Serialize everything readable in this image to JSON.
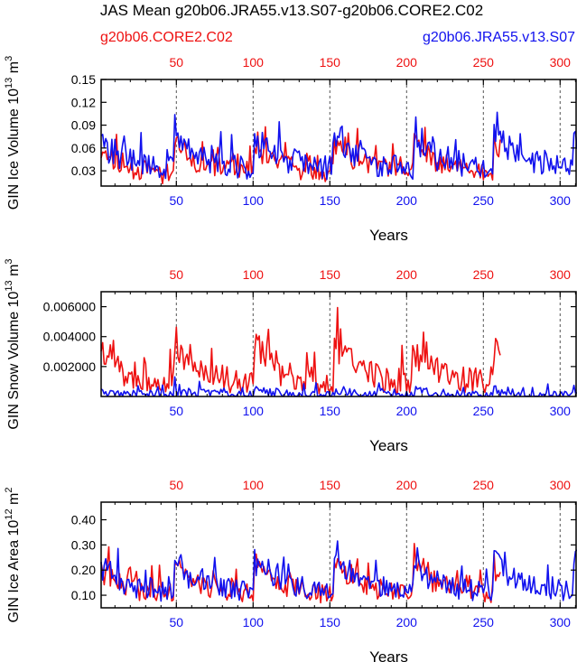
{
  "title": "JAS Mean g20b06.JRA55.v13.S07-g20b06.CORE2.C02",
  "legend": {
    "red_label": "g20b06.CORE2.C02",
    "blue_label": "g20b06.JRA55.v13.S07"
  },
  "colors": {
    "red": "#ee1111",
    "blue": "#1111ee",
    "axis": "#000000",
    "grid": "#555555"
  },
  "chart_data": [
    {
      "type": "line",
      "title": "",
      "ylabel_main": "GIN Ice Volume 10",
      "ylabel_exp": "13",
      "ylabel_tail": " m",
      "ylabel_exp2": "3",
      "xlabel": "Years",
      "xlim": [
        1,
        311
      ],
      "ylim": [
        0.01,
        0.15
      ],
      "yticks": [
        0.03,
        0.06,
        0.09,
        0.12,
        0.15
      ],
      "ytick_labels": [
        "0.03",
        "0.06",
        "0.09",
        "0.12",
        "0.15"
      ],
      "top_ticks": [
        50,
        100,
        150,
        200,
        250,
        300
      ],
      "top_tick_labels": [
        "50",
        "100",
        "150",
        "200",
        "250",
        "300"
      ],
      "bottom_ticks": [
        50,
        100,
        150,
        200,
        250,
        300
      ],
      "bottom_tick_labels": [
        "50",
        "100",
        "150",
        "200",
        "250",
        "300"
      ],
      "vlines": [
        50,
        100,
        150,
        200,
        250,
        300
      ],
      "series": [
        {
          "name": "g20b06.CORE2.C02",
          "color": "red",
          "start": 1,
          "length": 261,
          "params": {
            "base": 0.025,
            "amp": 0.055,
            "period": 52,
            "noise": 0.028,
            "floor": 0.012,
            "cap": 0.14,
            "seed": 11
          }
        },
        {
          "name": "g20b06.JRA55.v13.S07",
          "color": "blue",
          "start": 1,
          "length": 311,
          "params": {
            "base": 0.032,
            "amp": 0.06,
            "period": 52,
            "noise": 0.032,
            "floor": 0.014,
            "cap": 0.148,
            "seed": 29
          }
        }
      ]
    },
    {
      "type": "line",
      "title": "",
      "ylabel_main": "GIN Snow Volume 10",
      "ylabel_exp": "13",
      "ylabel_tail": " m",
      "ylabel_exp2": "3",
      "xlabel": "Years",
      "xlim": [
        1,
        311
      ],
      "ylim": [
        0,
        0.007
      ],
      "yticks": [
        0.002,
        0.004,
        0.006
      ],
      "ytick_labels": [
        "0.002000",
        "0.004000",
        "0.006000"
      ],
      "top_ticks": [
        50,
        100,
        150,
        200,
        250,
        300
      ],
      "top_tick_labels": [
        "50",
        "100",
        "150",
        "200",
        "250",
        "300"
      ],
      "bottom_ticks": [
        50,
        100,
        150,
        200,
        250,
        300
      ],
      "bottom_tick_labels": [
        "50",
        "100",
        "150",
        "200",
        "250",
        "300"
      ],
      "vlines": [
        50,
        100,
        150,
        200,
        250,
        300
      ],
      "series": [
        {
          "name": "g20b06.CORE2.C02",
          "color": "red",
          "start": 1,
          "length": 261,
          "params": {
            "base": 0.0008,
            "amp": 0.0035,
            "period": 52,
            "noise": 0.0018,
            "floor": 0.0002,
            "cap": 0.0071,
            "seed": 5
          }
        },
        {
          "name": "g20b06.JRA55.v13.S07",
          "color": "blue",
          "start": 1,
          "length": 311,
          "params": {
            "base": 5e-05,
            "amp": 0.0005,
            "period": 52,
            "noise": 0.0006,
            "floor": 2e-05,
            "cap": 0.0015,
            "seed": 17
          }
        }
      ]
    },
    {
      "type": "line",
      "title": "",
      "ylabel_main": "GIN Ice Area 10",
      "ylabel_exp": "12",
      "ylabel_tail": " m",
      "ylabel_exp2": "2",
      "xlabel": "Years",
      "xlim": [
        1,
        311
      ],
      "ylim": [
        0.05,
        0.47
      ],
      "yticks": [
        0.1,
        0.2,
        0.3,
        0.4
      ],
      "ytick_labels": [
        "0.10",
        "0.20",
        "0.30",
        "0.40"
      ],
      "top_ticks": [
        50,
        100,
        150,
        200,
        250,
        300
      ],
      "top_tick_labels": [
        "50",
        "100",
        "150",
        "200",
        "250",
        "300"
      ],
      "bottom_ticks": [
        50,
        100,
        150,
        200,
        250,
        300
      ],
      "bottom_tick_labels": [
        "50",
        "100",
        "150",
        "200",
        "250",
        "300"
      ],
      "vlines": [
        50,
        100,
        150,
        200,
        250,
        300
      ],
      "series": [
        {
          "name": "g20b06.CORE2.C02",
          "color": "red",
          "start": 1,
          "length": 261,
          "params": {
            "base": 0.1,
            "amp": 0.17,
            "period": 52,
            "noise": 0.08,
            "floor": 0.055,
            "cap": 0.45,
            "seed": 41
          }
        },
        {
          "name": "g20b06.JRA55.v13.S07",
          "color": "blue",
          "start": 1,
          "length": 311,
          "params": {
            "base": 0.11,
            "amp": 0.17,
            "period": 52,
            "noise": 0.085,
            "floor": 0.06,
            "cap": 0.44,
            "seed": 73
          }
        }
      ]
    }
  ]
}
